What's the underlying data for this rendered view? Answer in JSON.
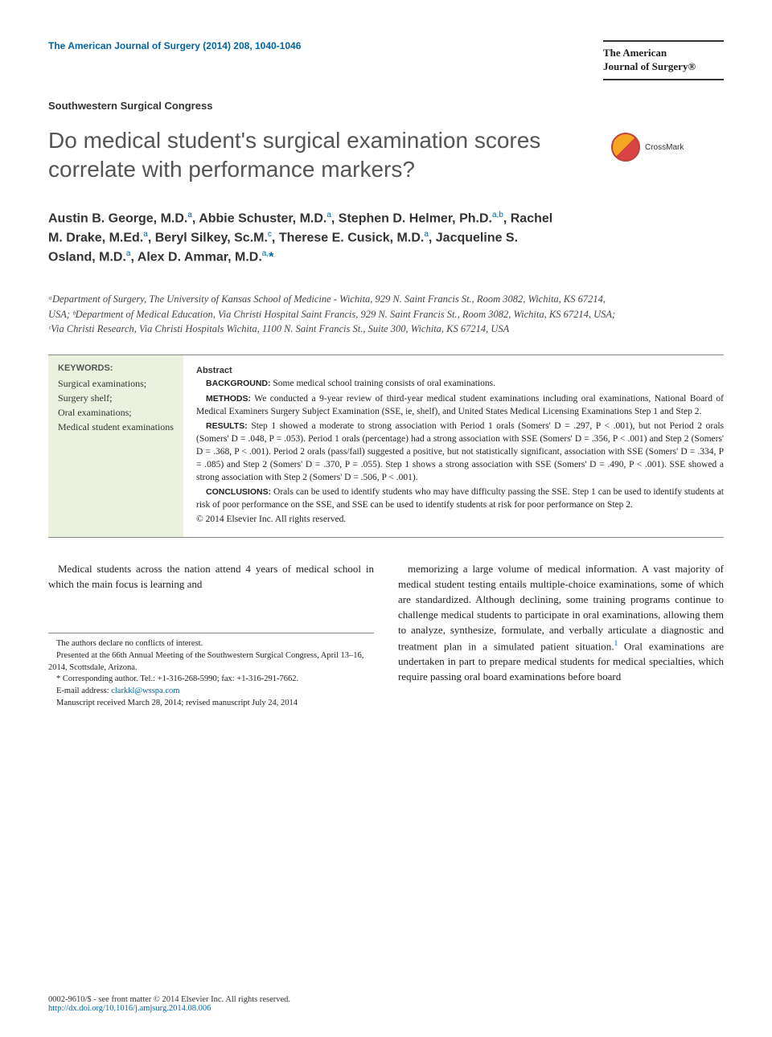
{
  "header": {
    "citation": "The American Journal of Surgery (2014) 208, 1040-1046",
    "journal_name_line1": "The American",
    "journal_name_line2": "Journal of Surgery®"
  },
  "section_label": "Southwestern Surgical Congress",
  "title": "Do medical student's surgical examination scores correlate with performance markers?",
  "crossmark_label": "CrossMark",
  "authors_html": "Austin B. George, M.D.<sup>a</sup>, Abbie Schuster, M.D.<sup>a</sup>, Stephen D. Helmer, Ph.D.<sup>a,b</sup>, Rachel M. Drake, M.Ed.<sup>a</sup>, Beryl Silkey, Sc.M.<sup>c</sup>, Therese E. Cusick, M.D.<sup>a</sup>, Jacqueline S. Osland, M.D.<sup>a</sup>, Alex D. Ammar, M.D.<sup>a,</sup><span class=\"star\">*</span>",
  "affiliations": "ᵃDepartment of Surgery, The University of Kansas School of Medicine - Wichita, 929 N. Saint Francis St., Room 3082, Wichita, KS 67214, USA; ᵇDepartment of Medical Education, Via Christi Hospital Saint Francis, 929 N. Saint Francis St., Room 3082, Wichita, KS 67214, USA; ᶜVia Christi Research, Via Christi Hospitals Wichita, 1100 N. Saint Francis St., Suite 300, Wichita, KS 67214, USA",
  "keywords": {
    "heading": "KEYWORDS:",
    "items": "Surgical examinations;\nSurgery shelf;\nOral examinations;\nMedical student examinations"
  },
  "abstract": {
    "heading": "Abstract",
    "background_label": "BACKGROUND:",
    "background_text": " Some medical school training consists of oral examinations.",
    "methods_label": "METHODS:",
    "methods_text": " We conducted a 9-year review of third-year medical student examinations including oral examinations, National Board of Medical Examiners Surgery Subject Examination (SSE, ie, shelf), and United States Medical Licensing Examinations Step 1 and Step 2.",
    "results_label": "RESULTS:",
    "results_text": " Step 1 showed a moderate to strong association with Period 1 orals (Somers' D = .297, P < .001), but not Period 2 orals (Somers' D = .048, P = .053). Period 1 orals (percentage) had a strong association with SSE (Somers' D = .356, P < .001) and Step 2 (Somers' D = .368, P < .001). Period 2 orals (pass/fail) suggested a positive, but not statistically significant, association with SSE (Somers' D = .334, P = .085) and Step 2 (Somers' D = .370, P = .055). Step 1 shows a strong association with SSE (Somers' D = .490, P < .001). SSE showed a strong association with Step 2 (Somers' D = .506, P < .001).",
    "conclusions_label": "CONCLUSIONS:",
    "conclusions_text": " Orals can be used to identify students who may have difficulty passing the SSE. Step 1 can be used to identify students at risk of poor performance on the SSE, and SSE can be used to identify students at risk for poor performance on Step 2.",
    "copyright": "© 2014 Elsevier Inc. All rights reserved."
  },
  "body": {
    "col1_p1": "Medical students across the nation attend 4 years of medical school in which the main focus is learning and",
    "col2_p1_a": "memorizing a large volume of medical information. A vast majority of medical student testing entails multiple-choice examinations, some of which are standardized. Although declining, some training programs continue to challenge medical students to participate in oral examinations, allowing them to analyze, synthesize, formulate, and verbally articulate a diagnostic and treatment plan in a simulated patient situation.",
    "col2_cite1": "1",
    "col2_p1_b": " Oral examinations are undertaken in part to prepare medical students for medical specialties, which require passing oral board examinations before board"
  },
  "footnotes": {
    "conflict": "The authors declare no conflicts of interest.",
    "presented": "Presented at the 66th Annual Meeting of the Southwestern Surgical Congress, April 13–16, 2014, Scottsdale, Arizona.",
    "corresponding": "* Corresponding author. Tel.: +1-316-268-5990; fax: +1-316-291-7662.",
    "email_label": "E-mail address: ",
    "email": "clarkkl@wsspa.com",
    "manuscript": "Manuscript received March 28, 2014; revised manuscript July 24, 2014"
  },
  "bottom": {
    "front_matter": "0002-9610/$ - see front matter © 2014 Elsevier Inc. All rights reserved.",
    "doi": "http://dx.doi.org/10.1016/j.amjsurg.2014.08.006"
  },
  "colors": {
    "link": "#0066a4",
    "keywords_bg": "#eaf2df",
    "title_gray": "#555555"
  }
}
